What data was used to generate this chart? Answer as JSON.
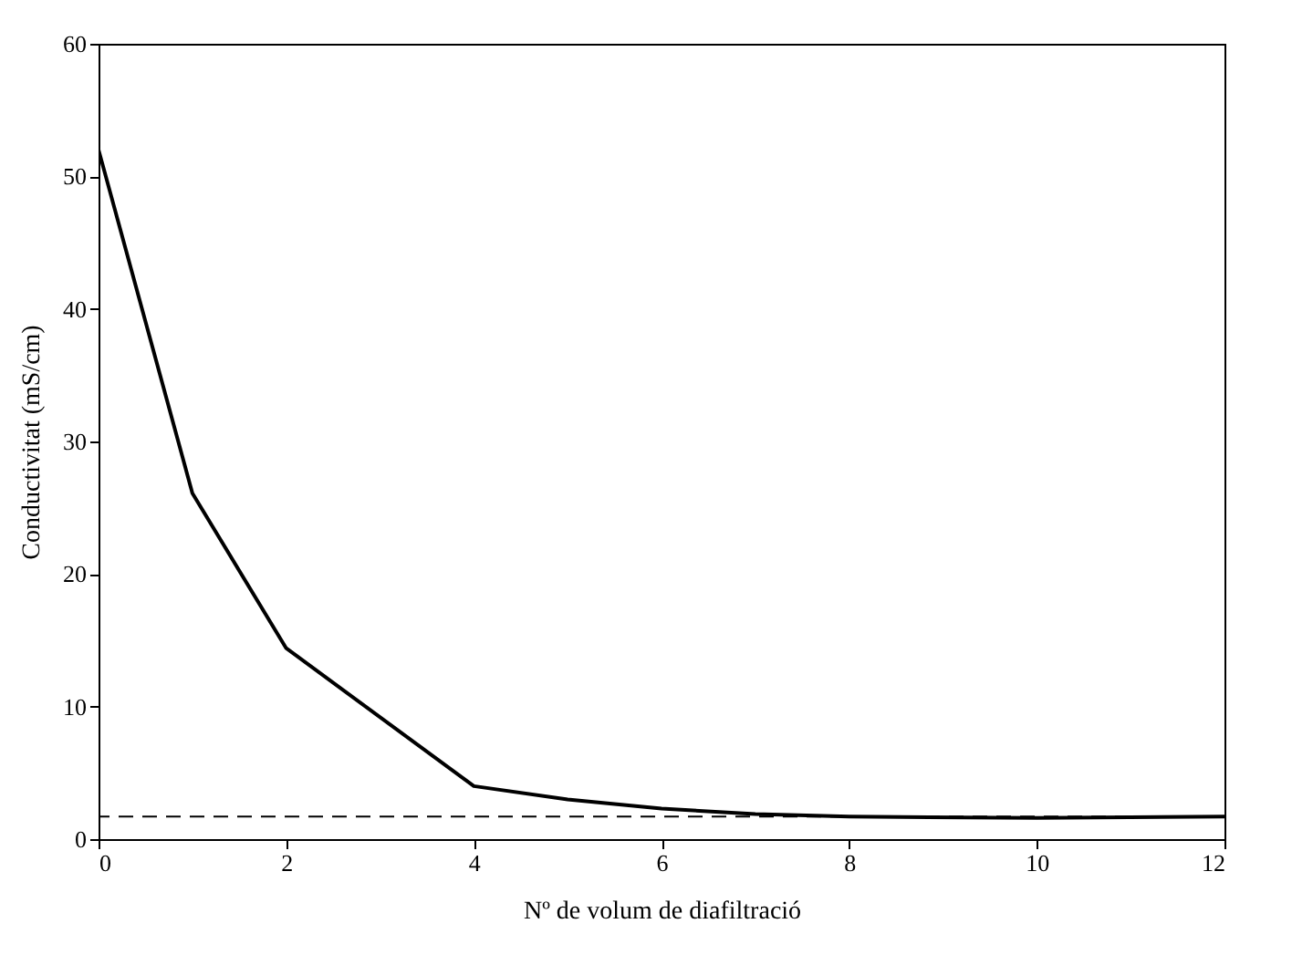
{
  "chart_data": {
    "type": "line",
    "xlabel": "Nº de volum de diafiltració",
    "ylabel": "Conductivitat (mS/cm)",
    "x": [
      0,
      1,
      2,
      4,
      5,
      6,
      7,
      8,
      10,
      12
    ],
    "series": [
      {
        "color": "#000000",
        "values": [
          52,
          26.1,
          14.4,
          4.0,
          3.0,
          2.3,
          1.9,
          1.7,
          1.6,
          1.7
        ]
      }
    ],
    "xlim": [
      0,
      12
    ],
    "xticks": [
      0,
      2,
      4,
      6,
      8,
      10,
      12
    ],
    "ylim": [
      0,
      60
    ],
    "yticks": [
      0,
      10,
      20,
      30,
      40,
      50,
      60
    ],
    "ref_lines": [
      {
        "axis": "y",
        "value": 1.7,
        "label": null,
        "color": "#000000",
        "line_style": "dashed"
      }
    ],
    "grid": false,
    "marker": "none",
    "line_style": "solid"
  }
}
